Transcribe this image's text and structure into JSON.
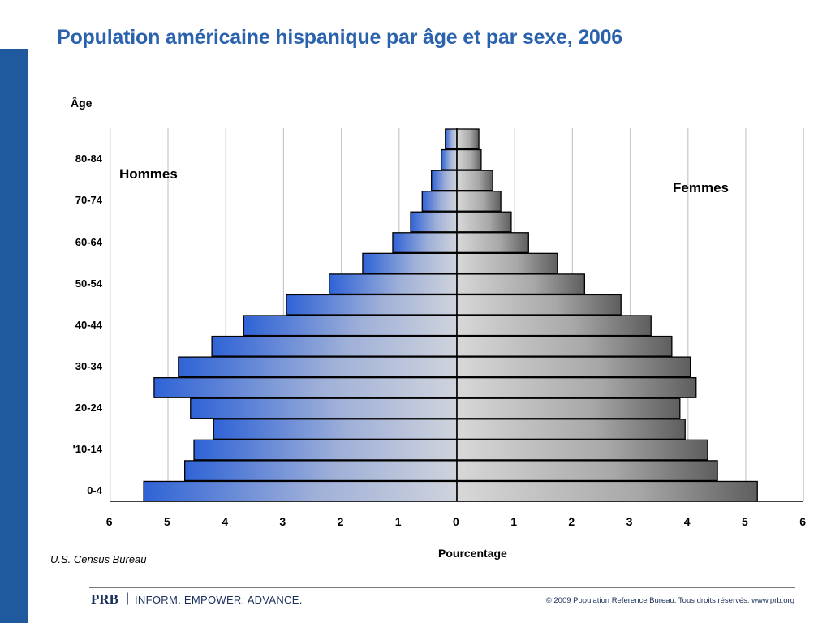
{
  "title": "Population américaine hispanique par âge et par sexe, 2006",
  "source": "U.S. Census Bureau",
  "footer": {
    "logo": "PRB",
    "separator": "|",
    "tagline": "INFORM. EMPOWER. ADVANCE.",
    "copyright": "© 2009 Population Reference Bureau. Tous droits réservés. www.prb.org"
  },
  "colors": {
    "accent": "#1f5a9e",
    "title": "#2a62ad",
    "men": "#2f63d6",
    "women": "#8a8a8a"
  },
  "chart_data": {
    "type": "bar",
    "orientation": "horizontal-pyramid",
    "title": "Population américaine hispanique par âge et par sexe, 2006",
    "ylabel": "Âge",
    "xlabel": "Pourcentage",
    "xlim": [
      -6,
      6
    ],
    "xtick_labels": [
      "6",
      "5",
      "4",
      "3",
      "2",
      "1",
      "0",
      "1",
      "2",
      "3",
      "4",
      "5",
      "6"
    ],
    "categories": [
      "0-4",
      "",
      "'10-14",
      "",
      "20-24",
      "",
      "30-34",
      "",
      "40-44",
      "",
      "50-54",
      "",
      "60-64",
      "",
      "70-74",
      "",
      "80-84",
      ""
    ],
    "grid": true,
    "series": [
      {
        "name": "Hommes",
        "side": "left",
        "values": [
          5.42,
          4.71,
          4.55,
          4.21,
          4.61,
          5.24,
          4.82,
          4.24,
          3.69,
          2.95,
          2.21,
          1.63,
          1.11,
          0.8,
          0.6,
          0.44,
          0.27,
          0.2
        ]
      },
      {
        "name": "Femmes",
        "side": "right",
        "values": [
          5.2,
          4.51,
          4.34,
          3.95,
          3.86,
          4.14,
          4.04,
          3.72,
          3.36,
          2.84,
          2.21,
          1.74,
          1.24,
          0.94,
          0.76,
          0.62,
          0.42,
          0.38
        ]
      }
    ]
  }
}
